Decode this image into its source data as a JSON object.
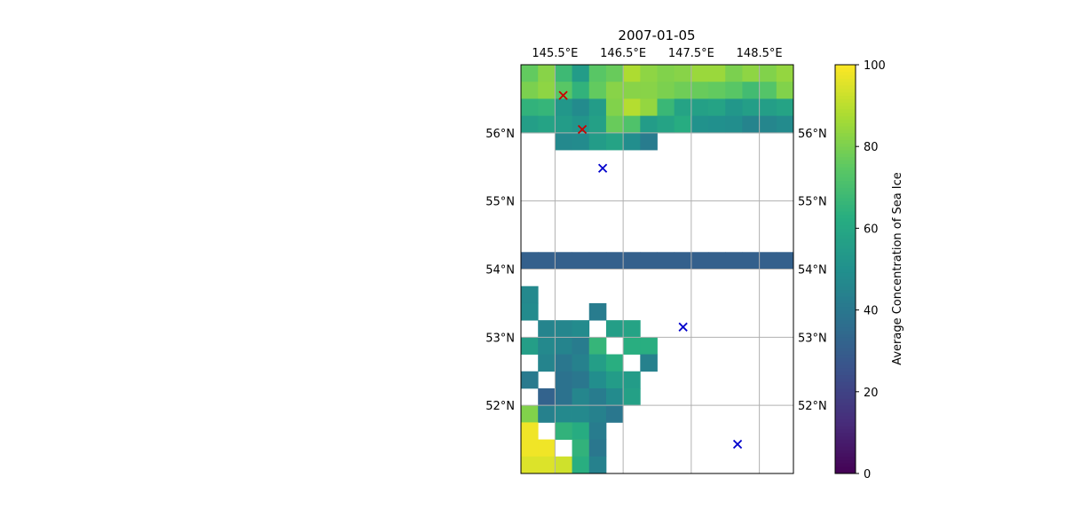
{
  "chart_data": {
    "type": "heatmap",
    "title": "2007-01-05",
    "colorbar_label": "Average Concentration of Sea Ice",
    "colormap": "viridis",
    "color_range": [
      0,
      100
    ],
    "colorbar_ticks": [
      "0",
      "20",
      "40",
      "60",
      "80",
      "100"
    ],
    "colorbar_tick_values": [
      0,
      20,
      40,
      60,
      80,
      100
    ],
    "lon_range": [
      145.0,
      149.0
    ],
    "lat_range": [
      51.0,
      57.0
    ],
    "x_ticks": [
      145.5,
      146.5,
      147.5,
      148.5
    ],
    "x_tick_labels": [
      "145.5°E",
      "146.5°E",
      "147.5°E",
      "148.5°E"
    ],
    "y_ticks": [
      52,
      53,
      54,
      55,
      56
    ],
    "y_tick_labels": [
      "52°N",
      "53°N",
      "54°N",
      "55°N",
      "56°N"
    ],
    "grid": true,
    "cell_size_deg": [
      0.25,
      0.25
    ],
    "lon_start": 145.0,
    "lat_top": 57.0,
    "grid_values": [
      [
        76,
        82,
        68,
        55,
        74,
        77,
        88,
        83,
        81,
        82,
        85,
        85,
        80,
        83,
        81,
        84
      ],
      [
        80,
        83,
        74,
        65,
        76,
        82,
        82,
        82,
        80,
        78,
        77,
        76,
        74,
        69,
        73,
        81
      ],
      [
        65,
        66,
        53,
        48,
        55,
        81,
        89,
        84,
        67,
        58,
        57,
        58,
        53,
        56,
        56,
        58
      ],
      [
        56,
        58,
        55,
        52,
        57,
        77,
        72,
        55,
        58,
        62,
        51,
        50,
        49,
        45,
        46,
        48
      ],
      [
        null,
        null,
        47,
        48,
        55,
        58,
        49,
        42,
        null,
        null,
        null,
        null,
        null,
        null,
        null,
        null
      ],
      [
        null,
        null,
        null,
        null,
        null,
        null,
        null,
        null,
        null,
        null,
        null,
        null,
        null,
        null,
        null,
        null
      ],
      [
        null,
        null,
        null,
        null,
        null,
        null,
        null,
        null,
        null,
        null,
        null,
        null,
        null,
        null,
        null,
        null
      ],
      [
        null,
        null,
        null,
        null,
        null,
        null,
        null,
        null,
        null,
        null,
        null,
        null,
        null,
        null,
        null,
        null
      ],
      [
        null,
        null,
        null,
        null,
        null,
        null,
        null,
        null,
        null,
        null,
        null,
        null,
        null,
        null,
        null,
        null
      ],
      [
        null,
        null,
        null,
        null,
        null,
        null,
        null,
        null,
        null,
        null,
        null,
        null,
        null,
        null,
        null,
        null
      ],
      [
        null,
        null,
        null,
        null,
        null,
        null,
        null,
        null,
        null,
        null,
        null,
        null,
        null,
        null,
        null,
        null
      ],
      [
        31,
        31,
        31,
        31,
        31,
        31,
        31,
        31,
        31,
        31,
        31,
        31,
        31,
        31,
        31,
        31
      ],
      [
        null,
        null,
        null,
        null,
        null,
        null,
        null,
        null,
        null,
        null,
        null,
        null,
        null,
        null,
        null,
        null
      ],
      [
        47,
        null,
        null,
        null,
        null,
        null,
        null,
        null,
        null,
        null,
        null,
        null,
        null,
        null,
        null,
        null
      ],
      [
        48,
        null,
        null,
        null,
        42,
        null,
        null,
        null,
        null,
        null,
        null,
        null,
        null,
        null,
        null,
        null
      ],
      [
        null,
        45,
        46,
        48,
        null,
        56,
        58,
        null,
        null,
        null,
        null,
        null,
        null,
        null,
        null,
        null
      ],
      [
        56,
        47,
        45,
        42,
        66,
        null,
        63,
        63,
        null,
        null,
        null,
        null,
        null,
        null,
        null,
        null
      ],
      [
        null,
        45,
        40,
        44,
        56,
        63,
        null,
        44,
        null,
        null,
        null,
        null,
        null,
        null,
        null,
        null
      ],
      [
        41,
        null,
        38,
        40,
        49,
        55,
        55,
        null,
        null,
        null,
        null,
        null,
        null,
        null,
        null,
        null
      ],
      [
        null,
        32,
        38,
        46,
        42,
        48,
        57,
        null,
        null,
        null,
        null,
        null,
        null,
        null,
        null,
        null
      ],
      [
        81,
        44,
        47,
        47,
        44,
        40,
        null,
        null,
        null,
        null,
        null,
        null,
        null,
        null,
        null,
        null
      ],
      [
        98,
        null,
        65,
        62,
        42,
        null,
        null,
        null,
        null,
        null,
        null,
        null,
        null,
        null,
        null,
        null
      ],
      [
        98,
        98,
        null,
        65,
        40,
        null,
        null,
        null,
        null,
        null,
        null,
        null,
        null,
        null,
        null,
        null
      ],
      [
        95,
        95,
        93,
        63,
        44,
        null,
        null,
        null,
        null,
        null,
        null,
        null,
        null,
        null,
        null,
        null
      ]
    ],
    "markers": [
      {
        "lon": 145.62,
        "lat": 56.55,
        "color": "#cc0000"
      },
      {
        "lon": 145.9,
        "lat": 56.05,
        "color": "#cc0000"
      },
      {
        "lon": 146.2,
        "lat": 55.48,
        "color": "#0000cc"
      },
      {
        "lon": 147.38,
        "lat": 53.15,
        "color": "#0000cc"
      },
      {
        "lon": 148.18,
        "lat": 51.43,
        "color": "#0000cc"
      }
    ]
  }
}
